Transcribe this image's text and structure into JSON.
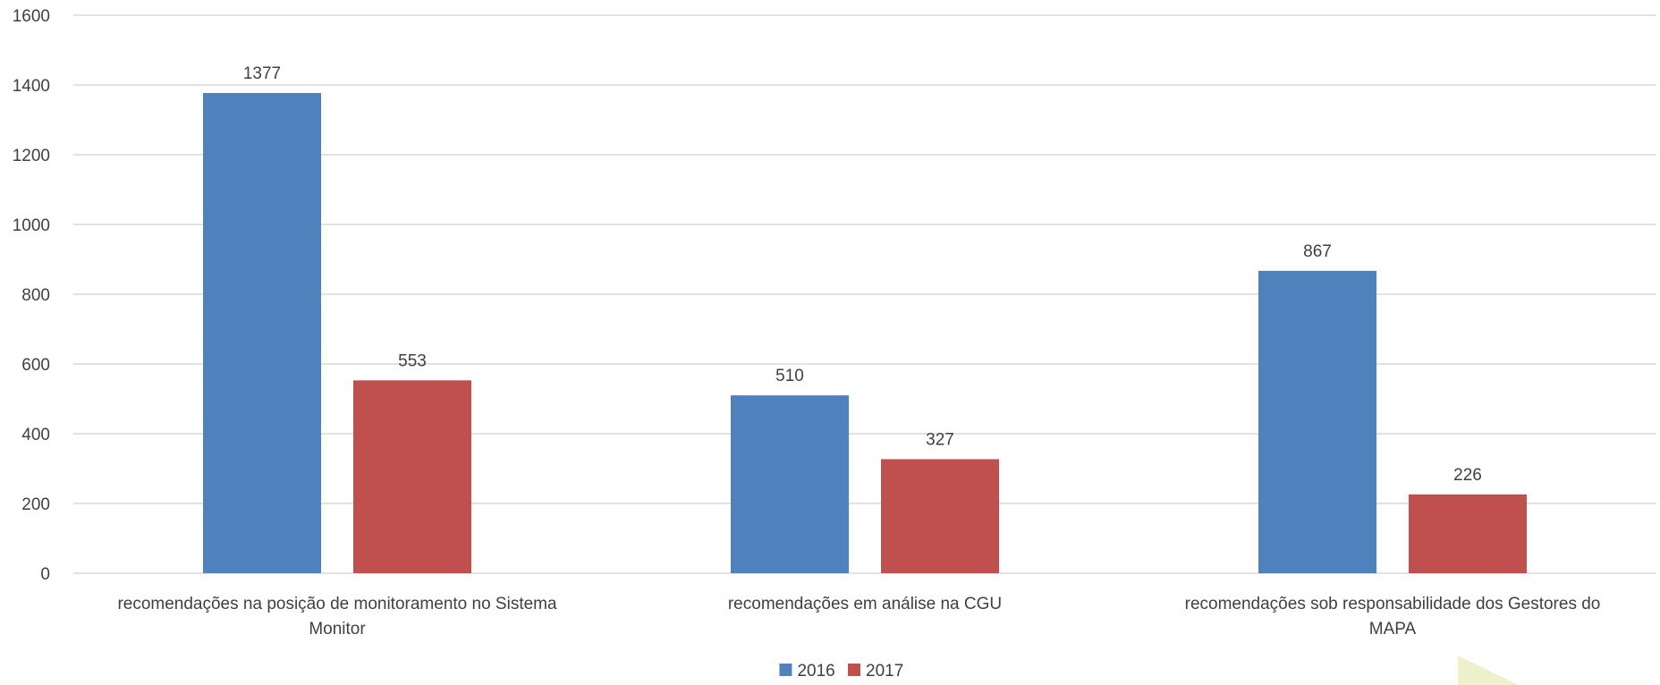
{
  "chart_data": {
    "type": "bar",
    "categories": [
      "recomendações na posição de monitoramento no Sistema Monitor",
      "recomendações em análise na CGU",
      "recomendações sob responsabilidade dos Gestores do MAPA"
    ],
    "category_lines": [
      [
        "recomendações na posição de monitoramento no Sistema",
        "Monitor"
      ],
      [
        "recomendações em análise na CGU"
      ],
      [
        "recomendações sob responsabilidade dos Gestores do",
        "MAPA"
      ]
    ],
    "series": [
      {
        "name": "2016",
        "color": "#4f81bd",
        "values": [
          1377,
          510,
          867
        ]
      },
      {
        "name": "2017",
        "color": "#c0504d",
        "values": [
          553,
          327,
          226
        ]
      }
    ],
    "ylim": [
      0,
      1600
    ],
    "yticks": [
      0,
      200,
      400,
      600,
      800,
      1000,
      1200,
      1400,
      1600
    ],
    "title": "",
    "xlabel": "",
    "ylabel": "",
    "grid": true,
    "legend_position": "bottom"
  }
}
